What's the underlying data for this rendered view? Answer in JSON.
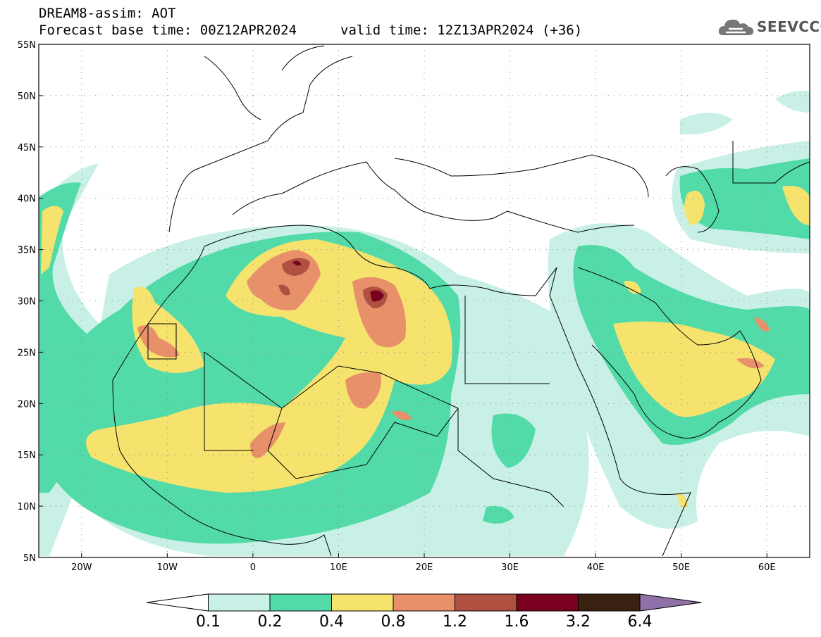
{
  "header": {
    "title": "DREAM8-assim: AOT",
    "base_time": "Forecast base time: 00Z12APR2024",
    "valid_time": "valid time: 12Z13APR2024 (+36)"
  },
  "logo": {
    "text": "SEEVCCC",
    "icon": "cloud-logo-icon"
  },
  "map": {
    "lon_range": [
      -25,
      65
    ],
    "lat_range": [
      5,
      55
    ],
    "lat_ticks": [
      {
        "value": 55,
        "label": "55N"
      },
      {
        "value": 50,
        "label": "50N"
      },
      {
        "value": 45,
        "label": "45N"
      },
      {
        "value": 40,
        "label": "40N"
      },
      {
        "value": 35,
        "label": "35N"
      },
      {
        "value": 30,
        "label": "30N"
      },
      {
        "value": 25,
        "label": "25N"
      },
      {
        "value": 20,
        "label": "20N"
      },
      {
        "value": 15,
        "label": "15N"
      },
      {
        "value": 10,
        "label": "10N"
      },
      {
        "value": 5,
        "label": "5N"
      }
    ],
    "lon_ticks": [
      {
        "value": -20,
        "label": "20W"
      },
      {
        "value": -10,
        "label": "10W"
      },
      {
        "value": 0,
        "label": "0"
      },
      {
        "value": 10,
        "label": "10E"
      },
      {
        "value": 20,
        "label": "20E"
      },
      {
        "value": 30,
        "label": "30E"
      },
      {
        "value": 40,
        "label": "40E"
      },
      {
        "value": 50,
        "label": "50E"
      },
      {
        "value": 60,
        "label": "60E"
      }
    ]
  },
  "colorbar": {
    "colors": [
      "#ffffff",
      "#c9f0e6",
      "#52dba8",
      "#f5e36e",
      "#e8906a",
      "#b05040",
      "#7a0020",
      "#3a2010",
      "#9070a8"
    ],
    "labels": [
      "0.1",
      "0.2",
      "0.4",
      "0.8",
      "1.2",
      "1.6",
      "3.2",
      "6.4"
    ]
  }
}
